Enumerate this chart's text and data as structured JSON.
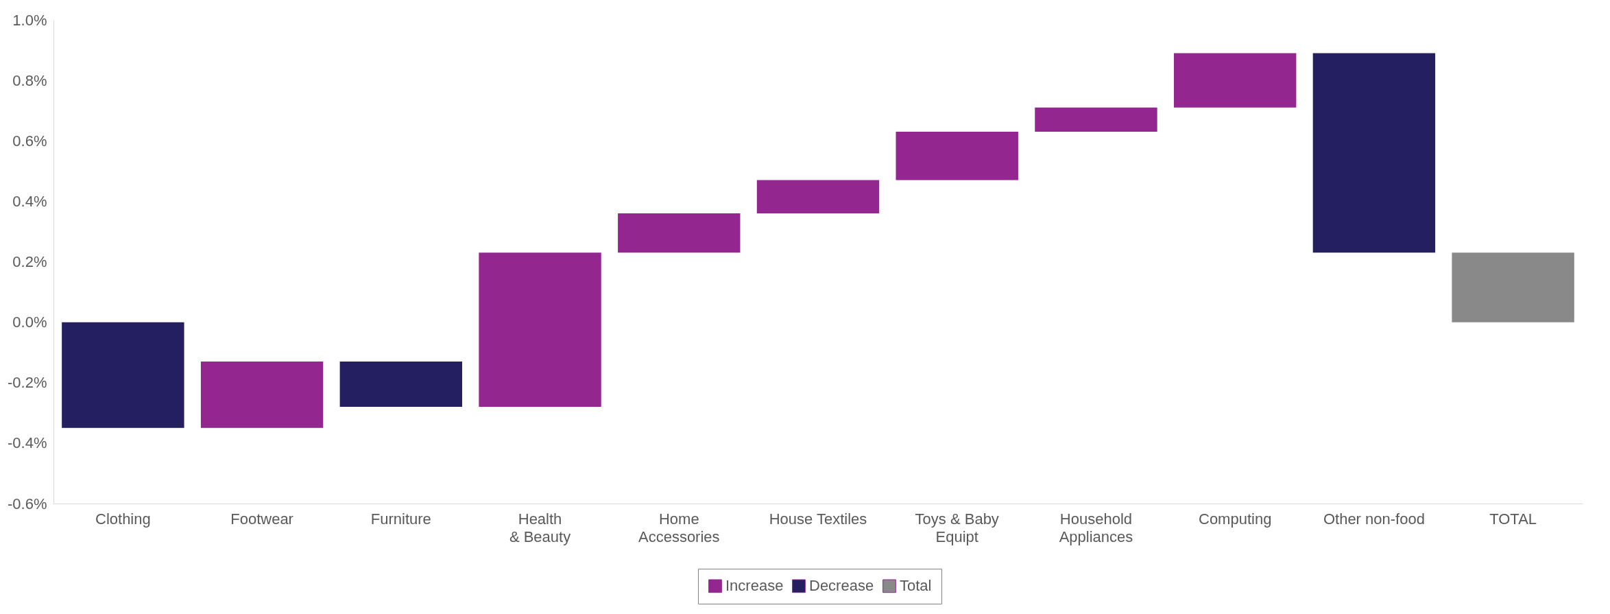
{
  "chart_data": {
    "type": "bar",
    "categories": [
      "Clothing",
      "Footwear",
      "Furniture",
      "Health & Beauty",
      "Home Accessories",
      "House Textiles",
      "Toys & Baby Equipt",
      "Household Appliances",
      "Computing",
      "Other non-food",
      "TOTAL"
    ],
    "series": [
      {
        "name": "Increase",
        "color": "#93278f",
        "values": [
          null,
          0.22,
          null,
          0.51,
          0.13,
          0.11,
          0.16,
          0.08,
          0.18,
          null,
          null
        ],
        "base": [
          null,
          -0.35,
          null,
          -0.28,
          0.23,
          0.36,
          0.47,
          0.63,
          0.71,
          null,
          null
        ]
      },
      {
        "name": "Decrease",
        "color": "#241f5f",
        "values": [
          -0.35,
          null,
          -0.15,
          null,
          null,
          null,
          null,
          null,
          null,
          -0.66,
          null
        ],
        "base": [
          0,
          null,
          -0.13,
          null,
          null,
          null,
          null,
          null,
          null,
          0.89,
          null
        ]
      },
      {
        "name": "Total",
        "color": "#898989",
        "values": [
          null,
          null,
          null,
          null,
          null,
          null,
          null,
          null,
          null,
          null,
          0.23
        ],
        "base": [
          null,
          null,
          null,
          null,
          null,
          null,
          null,
          null,
          null,
          null,
          0
        ]
      }
    ],
    "ylim": [
      -0.6,
      1.0
    ],
    "yticks": [
      {
        "value": -0.6,
        "label": "-0.6%"
      },
      {
        "value": -0.4,
        "label": "-0.4%"
      },
      {
        "value": -0.2,
        "label": "-0.2%"
      },
      {
        "value": 0,
        "label": "0.0%"
      },
      {
        "value": 0.2,
        "label": "0.2%"
      },
      {
        "value": 0.4,
        "label": "0.4%"
      },
      {
        "value": 0.6,
        "label": "0.6%"
      },
      {
        "value": 0.8,
        "label": "0.8%"
      },
      {
        "value": 1.0,
        "label": "1.0%"
      }
    ],
    "grid": false,
    "legend": "bottom"
  }
}
